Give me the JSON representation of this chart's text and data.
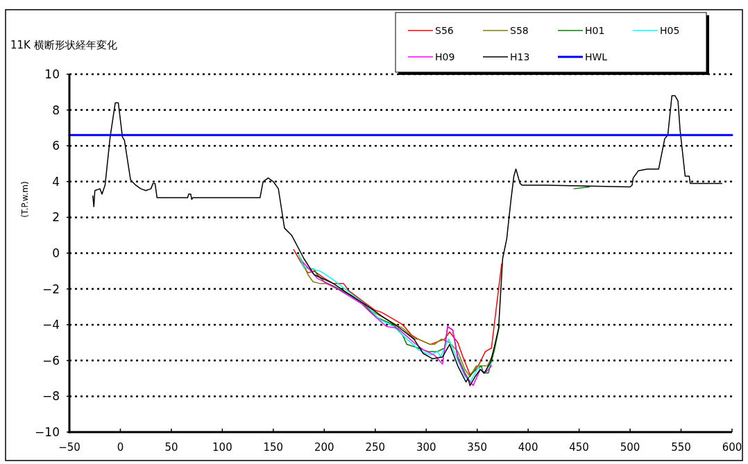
{
  "chart_data": {
    "type": "line",
    "title": "11K 横断形状経年変化",
    "ylabel": "(T.P.w.m)",
    "xlim": [
      -50,
      600
    ],
    "ylim": [
      -10,
      10
    ],
    "xticks": [
      -50,
      0,
      50,
      100,
      150,
      200,
      250,
      300,
      350,
      400,
      450,
      500,
      550,
      600
    ],
    "yticks": [
      -10,
      -8,
      -6,
      -4,
      -2,
      0,
      2,
      4,
      6,
      8,
      10
    ],
    "grid": "y",
    "legend": "top right",
    "series": [
      {
        "name": "S56",
        "color": "#ff0000",
        "x": [
          170,
          177,
          184,
          190,
          200,
          209,
          219,
          224,
          238,
          250,
          256,
          268,
          277,
          286,
          292,
          304,
          318,
          323,
          331,
          336,
          343,
          351,
          358,
          364,
          374
        ],
        "values": [
          0.2,
          -0.5,
          -1.1,
          -1.0,
          -1.4,
          -1.7,
          -1.7,
          -2.1,
          -2.7,
          -3.2,
          -3.3,
          -3.7,
          -4.0,
          -4.6,
          -4.8,
          -5.1,
          -4.8,
          -4.4,
          -5.0,
          -5.8,
          -6.8,
          -6.3,
          -5.5,
          -5.3,
          -0.6
        ]
      },
      {
        "name": "S58",
        "color": "#808000",
        "x": [
          177,
          184,
          189,
          196,
          202,
          213,
          232,
          245,
          258,
          277,
          289,
          292,
          304,
          308,
          315,
          323,
          331,
          338,
          343,
          349,
          354,
          360,
          366
        ],
        "values": [
          -0.3,
          -1.2,
          -1.6,
          -1.7,
          -1.7,
          -2.0,
          -2.5,
          -3.2,
          -3.6,
          -4.2,
          -4.8,
          -4.8,
          -5.1,
          -5.1,
          -4.8,
          -5.0,
          -5.5,
          -6.5,
          -6.9,
          -6.3,
          -6.3,
          -6.3,
          -5.6
        ]
      },
      {
        "name": "H01",
        "color": "#008000",
        "x": [
          175,
          180,
          190,
          193,
          200,
          211,
          227,
          238,
          244,
          252,
          268,
          277,
          281,
          292,
          302,
          311,
          318,
          321,
          326,
          331,
          338,
          341,
          347,
          354,
          356,
          361,
          367,
          372,
          null,
          445,
          460
        ],
        "values": [
          -0.1,
          -0.8,
          -0.9,
          -1.2,
          -1.6,
          -1.9,
          -2.4,
          -2.8,
          -3.2,
          -3.6,
          -4.0,
          -4.6,
          -5.1,
          -5.3,
          -5.5,
          -5.5,
          -5.3,
          -4.1,
          -4.3,
          -5.8,
          -6.7,
          -7.0,
          -6.6,
          -6.3,
          -6.7,
          -6.7,
          -5.4,
          -4.0,
          null,
          3.6,
          3.7
        ]
      },
      {
        "name": "H05",
        "color": "#00ffff",
        "x": [
          175,
          180,
          196,
          209,
          227,
          241,
          254,
          268,
          281,
          289,
          292,
          304,
          311,
          314,
          322,
          331,
          338,
          343,
          351,
          357,
          364
        ],
        "values": [
          -0.1,
          -0.8,
          -1.0,
          -1.5,
          -2.3,
          -2.9,
          -3.7,
          -4.1,
          -4.8,
          -5.2,
          -5.4,
          -5.7,
          -5.5,
          -5.8,
          -4.8,
          -6.0,
          -6.9,
          -7.2,
          -6.4,
          -6.7,
          -6.1
        ]
      },
      {
        "name": "H09",
        "color": "#ff00ff",
        "x": [
          179,
          193,
          213,
          236,
          247,
          261,
          272,
          288,
          297,
          308,
          316,
          321,
          326,
          331,
          338,
          346,
          353,
          358,
          364
        ],
        "values": [
          -0.5,
          -1.4,
          -2.0,
          -2.8,
          -3.4,
          -4.1,
          -4.2,
          -5.0,
          -5.4,
          -5.7,
          -6.2,
          -4.1,
          -4.3,
          -5.9,
          -6.8,
          -7.4,
          -6.5,
          -6.7,
          -6.3
        ]
      },
      {
        "name": "H13",
        "color": "#000000",
        "x": [
          -27,
          -26,
          -25,
          -20,
          -18,
          -15,
          -10,
          -5,
          -2,
          2,
          4,
          10,
          15,
          20,
          25,
          30,
          32,
          34,
          36,
          66,
          67,
          69,
          70,
          71,
          137,
          140,
          145,
          150,
          155,
          158,
          161,
          168,
          180,
          190,
          209,
          227,
          241,
          256,
          272,
          288,
          297,
          306,
          316,
          323,
          331,
          339,
          341,
          343,
          348,
          353,
          357,
          363,
          367,
          371,
          375,
          379,
          383,
          386,
          388,
          392,
          394,
          400,
          417,
          500,
          502,
          503,
          508,
          517,
          528,
          534,
          537,
          541,
          544,
          547,
          549,
          554,
          558,
          559,
          590
        ],
        "values": [
          3.2,
          2.6,
          3.5,
          3.6,
          3.3,
          3.8,
          6.5,
          8.4,
          8.4,
          6.5,
          6.3,
          4.1,
          3.8,
          3.6,
          3.5,
          3.6,
          3.9,
          3.9,
          3.1,
          3.1,
          3.3,
          3.3,
          3.0,
          3.1,
          3.1,
          4.0,
          4.2,
          4.0,
          3.6,
          2.5,
          1.4,
          1.0,
          -0.3,
          -1.2,
          -1.7,
          -2.4,
          -2.9,
          -3.5,
          -4.1,
          -4.8,
          -5.6,
          -5.9,
          -5.8,
          -5.1,
          -6.3,
          -7.2,
          -7.0,
          -7.4,
          -6.9,
          -6.5,
          -6.7,
          -6.1,
          -5.2,
          -4.2,
          -0.3,
          0.8,
          2.9,
          4.3,
          4.7,
          3.9,
          3.8,
          3.8,
          3.8,
          3.7,
          3.8,
          4.2,
          4.6,
          4.7,
          4.7,
          6.4,
          6.6,
          8.8,
          8.8,
          8.5,
          6.9,
          4.3,
          4.3,
          3.9,
          3.9
        ]
      },
      {
        "name": "HWL",
        "color": "#0000ff",
        "x": [
          -50,
          600
        ],
        "values": [
          6.6,
          6.6
        ]
      }
    ]
  }
}
